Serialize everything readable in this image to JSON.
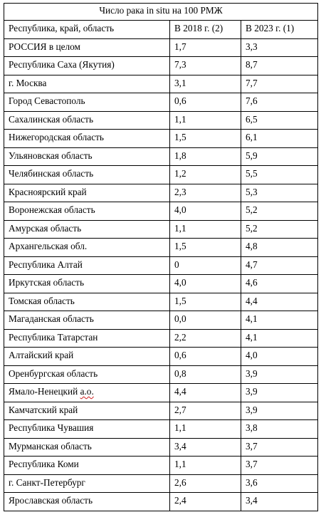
{
  "table": {
    "title": "Число рака in situ на 100 РМЖ",
    "headers": [
      "Республика, край, область",
      "В 2018 г. (2)",
      "В 2023 г. (1)"
    ],
    "rows": [
      {
        "region": "РОССИЯ в целом",
        "y2018": "1,7",
        "y2023": "3,3"
      },
      {
        "region": "Республика Саха (Якутия)",
        "y2018": "7,3",
        "y2023": "8,7"
      },
      {
        "region": "г. Москва",
        "y2018": "3,1",
        "y2023": "7,7"
      },
      {
        "region": "Город Севастополь",
        "y2018": "0,6",
        "y2023": "7,6"
      },
      {
        "region": "Сахалинская область",
        "y2018": "1,1",
        "y2023": "6,5"
      },
      {
        "region": "Нижегородская область",
        "y2018": "1,5",
        "y2023": "6,1"
      },
      {
        "region": "Ульяновская область",
        "y2018": "1,8",
        "y2023": "5,9"
      },
      {
        "region": "Челябинская область",
        "y2018": "1,2",
        "y2023": "5,5"
      },
      {
        "region": "Красноярский край",
        "y2018": "2,3",
        "y2023": "5,3"
      },
      {
        "region": "Воронежская область",
        "y2018": "4,0",
        "y2023": "5,2"
      },
      {
        "region": "Амурская область",
        "y2018": "1,1",
        "y2023": "5,2"
      },
      {
        "region": "Архангельская обл.",
        "y2018": "1,5",
        "y2023": "4,8"
      },
      {
        "region": "Республика Алтай",
        "y2018": "0",
        "y2023": "4,7"
      },
      {
        "region": "Иркутская область",
        "y2018": "4,0",
        "y2023": "4,6"
      },
      {
        "region": "Томская область",
        "y2018": "1,5",
        "y2023": "4,4"
      },
      {
        "region": "Магаданская область",
        "y2018": "0,0",
        "y2023": "4,1"
      },
      {
        "region": "Республика Татарстан",
        "y2018": "2,2",
        "y2023": "4,1"
      },
      {
        "region": "Алтайский край",
        "y2018": "0,6",
        "y2023": "4,0"
      },
      {
        "region": "Оренбургская область",
        "y2018": "0,8",
        "y2023": "3,9"
      },
      {
        "region_main": "Ямало-Ненецкий ",
        "region_flagged": "а.о.",
        "y2018": "4,4",
        "y2023": "3,9"
      },
      {
        "region": "Камчатский край",
        "y2018": "2,7",
        "y2023": "3,9"
      },
      {
        "region": "Республика Чувашия",
        "y2018": "1,1",
        "y2023": "3,8"
      },
      {
        "region": "Мурманская область",
        "y2018": "3,4",
        "y2023": "3,7"
      },
      {
        "region": "Республика Коми",
        "y2018": "1,1",
        "y2023": "3,7"
      },
      {
        "region": "г. Санкт-Петербург",
        "y2018": "2,6",
        "y2023": "3,6"
      },
      {
        "region": "Ярославская область",
        "y2018": "2,4",
        "y2023": "3,4"
      }
    ]
  }
}
